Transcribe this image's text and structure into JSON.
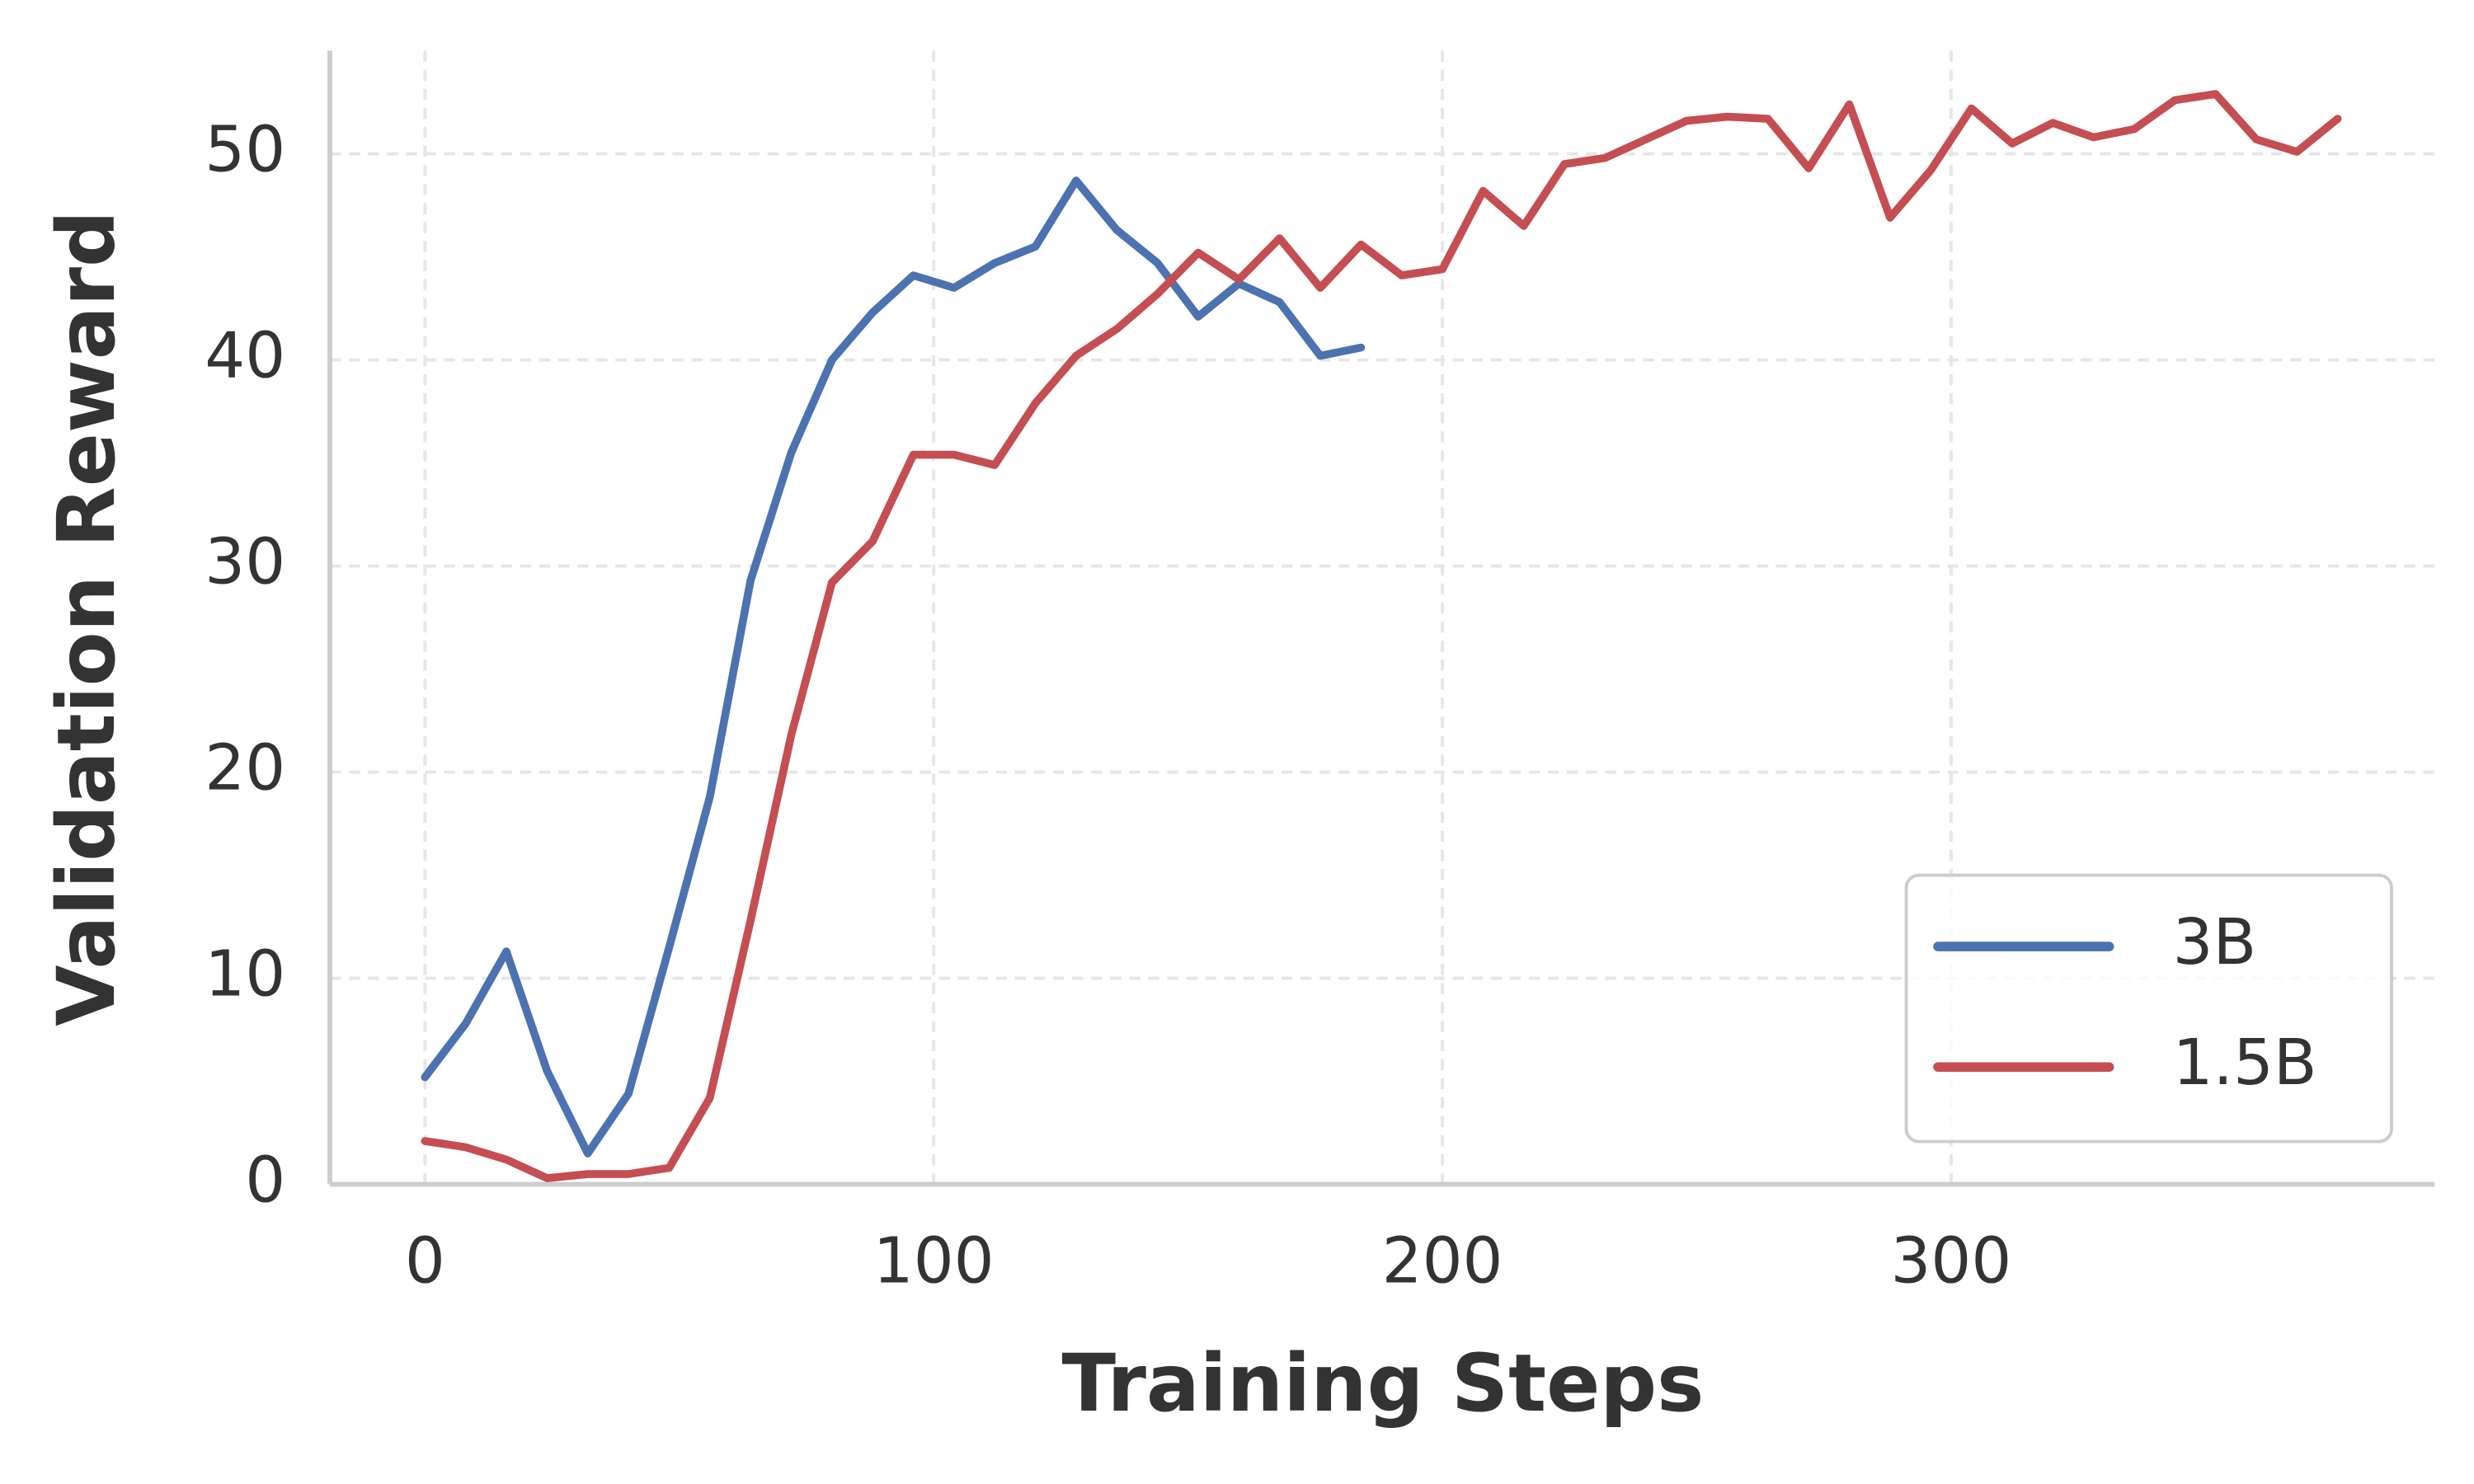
{
  "chart_data": {
    "type": "line",
    "x_label": "Training Steps",
    "y_label": "Validation Reward",
    "x": [
      0,
      8,
      16,
      24,
      32,
      40,
      48,
      56,
      64,
      72,
      80,
      88,
      96,
      104,
      112,
      120,
      128,
      136,
      144,
      152,
      160,
      168,
      176,
      184,
      192,
      200,
      208,
      216,
      224,
      232,
      240,
      248,
      256,
      264,
      272,
      280,
      288,
      296,
      304,
      312,
      320,
      328,
      336,
      344,
      352,
      360,
      368,
      376
    ],
    "series": [
      {
        "name": "3B",
        "color": "#4c72b0",
        "values": [
          5.2,
          7.8,
          11.3,
          5.5,
          1.5,
          4.4,
          11.5,
          18.8,
          29.3,
          35.5,
          40,
          42.3,
          44.1,
          43.5,
          44.7,
          45.5,
          48.7,
          46.3,
          44.7,
          42.1,
          43.7,
          42.8,
          40.2,
          40.6,
          null,
          null,
          null,
          null,
          null,
          null,
          null,
          null,
          null,
          null,
          null,
          null,
          null,
          null,
          null,
          null,
          null,
          null,
          null,
          null,
          null,
          null,
          null,
          null
        ]
      },
      {
        "name": "1.5B",
        "color": "#c44e52",
        "values": [
          2.1,
          1.8,
          1.2,
          0.3,
          0.5,
          0.5,
          0.8,
          4.2,
          12.8,
          21.8,
          29.2,
          31.2,
          35.4,
          35.4,
          34.9,
          37.9,
          40.2,
          41.5,
          43.2,
          45.2,
          43.9,
          45.9,
          43.5,
          45.6,
          44.1,
          44.4,
          48.2,
          46.5,
          49.5,
          49.8,
          50.7,
          51.6,
          51.8,
          51.7,
          49.3,
          52.4,
          46.9,
          49.2,
          52.2,
          50.5,
          51.5,
          50.8,
          51.2,
          52.6,
          52.9,
          50.7,
          50.1,
          51.7
        ]
      }
    ],
    "xlim": [
      -18.7,
      395
    ],
    "xticks": [
      0,
      100,
      200,
      300
    ],
    "ylim": [
      0,
      55
    ],
    "yticks": [
      0,
      10,
      20,
      30,
      40,
      50
    ],
    "grid": true,
    "legend": "lower right"
  }
}
